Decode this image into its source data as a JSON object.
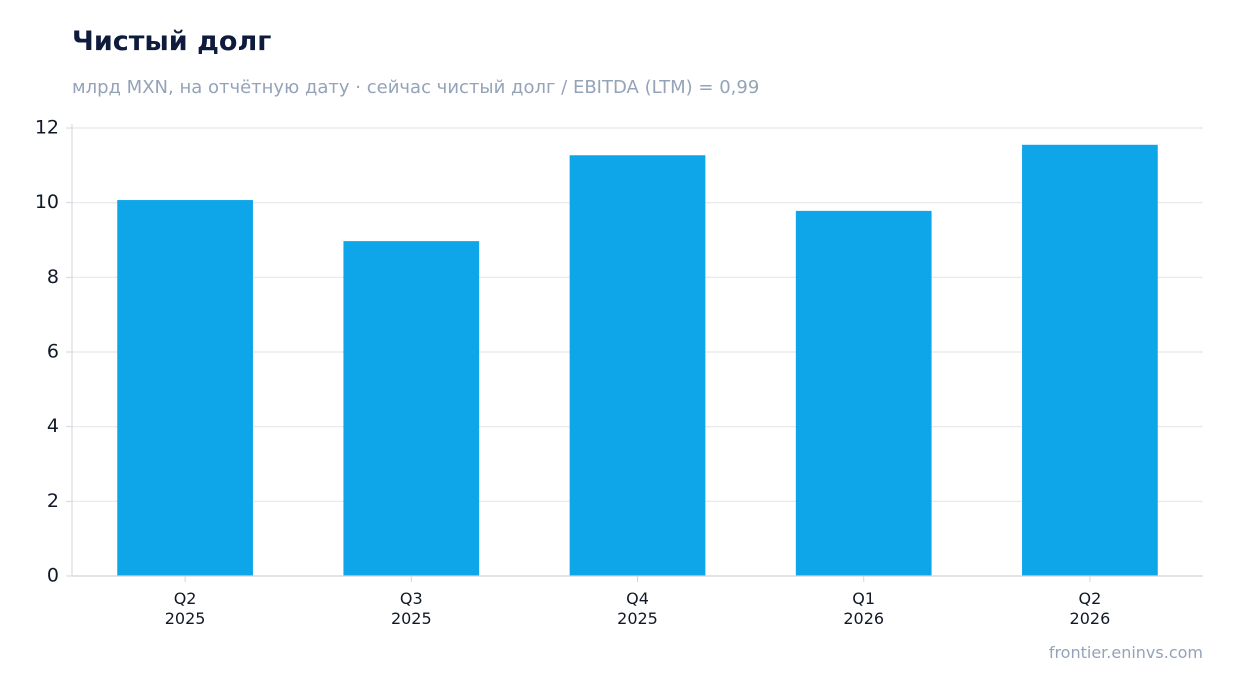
{
  "header": {
    "title": "Чистый долг",
    "subtitle": "млрд MXN, на отчётную дату · сейчас чистый долг / EBITDA (LTM) = 0,99"
  },
  "footer": {
    "source": "frontier.eninvs.com"
  },
  "chart_data": {
    "type": "bar",
    "categories": [
      [
        "Q2",
        "2025"
      ],
      [
        "Q3",
        "2025"
      ],
      [
        "Q4",
        "2025"
      ],
      [
        "Q1",
        "2026"
      ],
      [
        "Q2",
        "2026"
      ]
    ],
    "values": [
      10.07,
      8.97,
      11.27,
      9.78,
      11.55
    ],
    "title": "Чистый долг",
    "subtitle": "млрд MXN, на отчётную дату · сейчас чистый долг / EBITDA (LTM) = 0,99",
    "xlabel": "",
    "ylabel": "",
    "ylim": [
      0,
      12
    ],
    "yticks": [
      0,
      2,
      4,
      6,
      8,
      10,
      12
    ],
    "grid": true,
    "legend": "none",
    "colors": {
      "bar": "#0ea5e9",
      "grid": "#e5e7eb",
      "axis": "#d1d5db",
      "text": "#111827"
    }
  }
}
